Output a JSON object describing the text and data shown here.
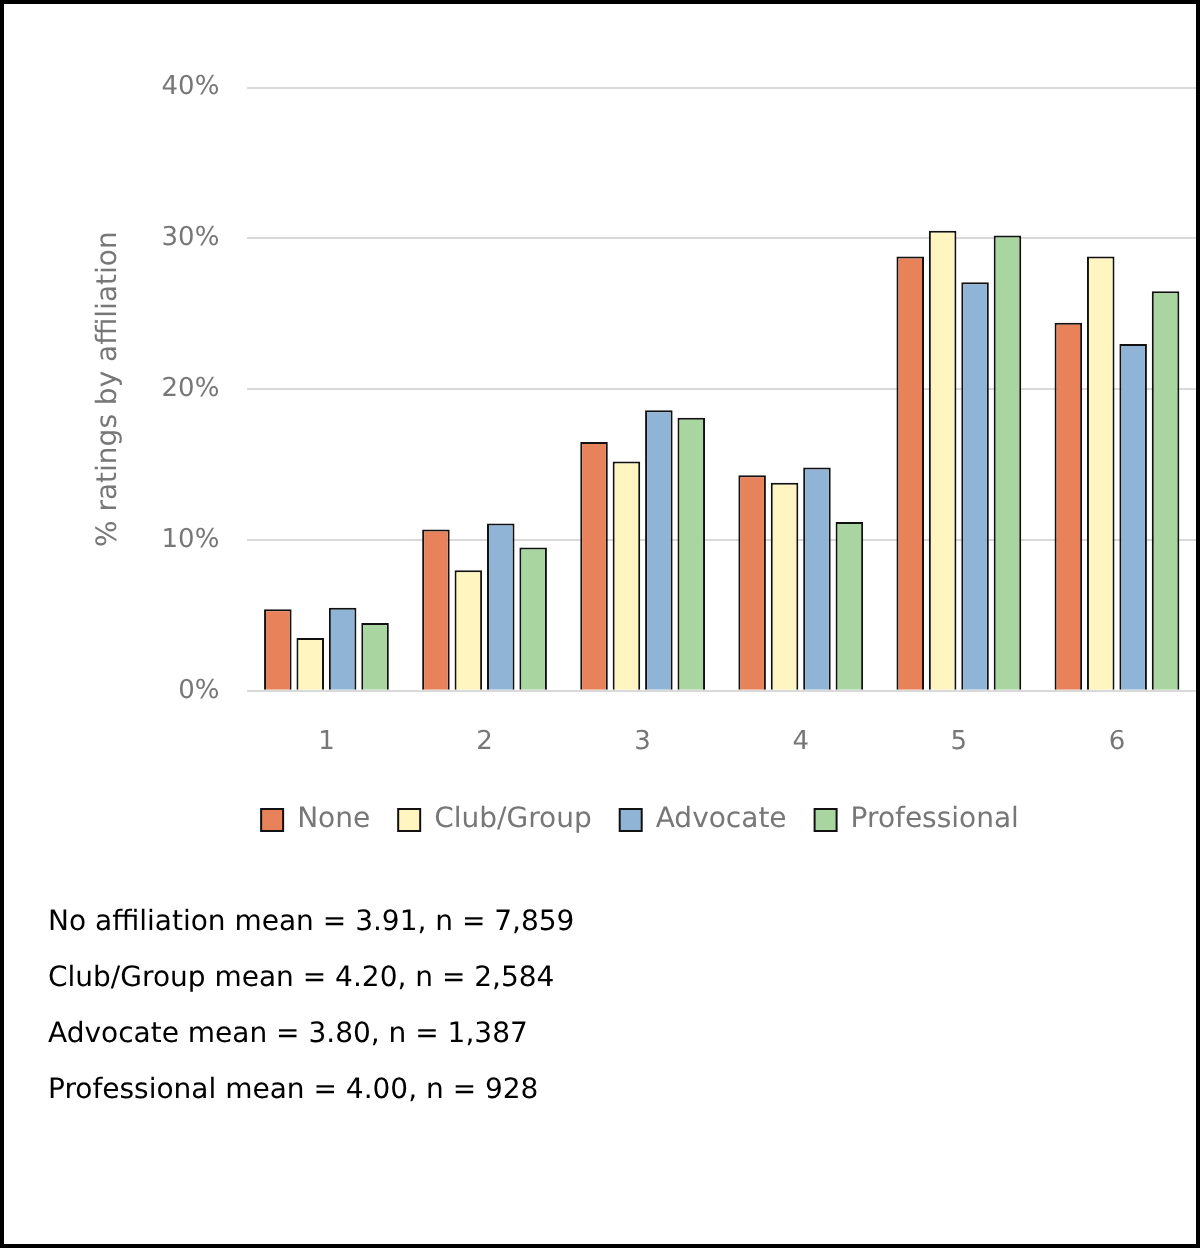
{
  "chart_data": {
    "type": "bar",
    "ylabel": "% ratings by affiliation",
    "categories": [
      "1",
      "2",
      "3",
      "4",
      "5",
      "6"
    ],
    "series": [
      {
        "name": "None",
        "color": "#e8825a",
        "values": [
          5.4,
          10.7,
          16.5,
          14.3,
          28.8,
          24.4
        ]
      },
      {
        "name": "Club/Group",
        "color": "#fff5c0",
        "values": [
          3.5,
          8.0,
          15.2,
          13.8,
          30.5,
          28.8
        ]
      },
      {
        "name": "Advocate",
        "color": "#8fb4d6",
        "values": [
          5.5,
          11.1,
          18.6,
          14.8,
          27.1,
          23.0
        ]
      },
      {
        "name": "Professional",
        "color": "#a8d5a0",
        "values": [
          4.5,
          9.5,
          18.1,
          11.2,
          30.2,
          26.5
        ]
      }
    ],
    "ylim": [
      0,
      40
    ],
    "yticks": [
      {
        "value": 0,
        "label": "0%"
      },
      {
        "value": 10,
        "label": "10%"
      },
      {
        "value": 20,
        "label": "20%"
      },
      {
        "value": 30,
        "label": "30%"
      },
      {
        "value": 40,
        "label": "40%"
      }
    ],
    "grid": "y",
    "legend": "bottom",
    "annotations": [
      "No affiliation mean = 3.91, n = 7,859",
      "Club/Group mean = 4.20, n = 2,584",
      "Advocate mean = 3.80, n = 1,387",
      "Professional mean = 4.00, n = 928"
    ]
  }
}
